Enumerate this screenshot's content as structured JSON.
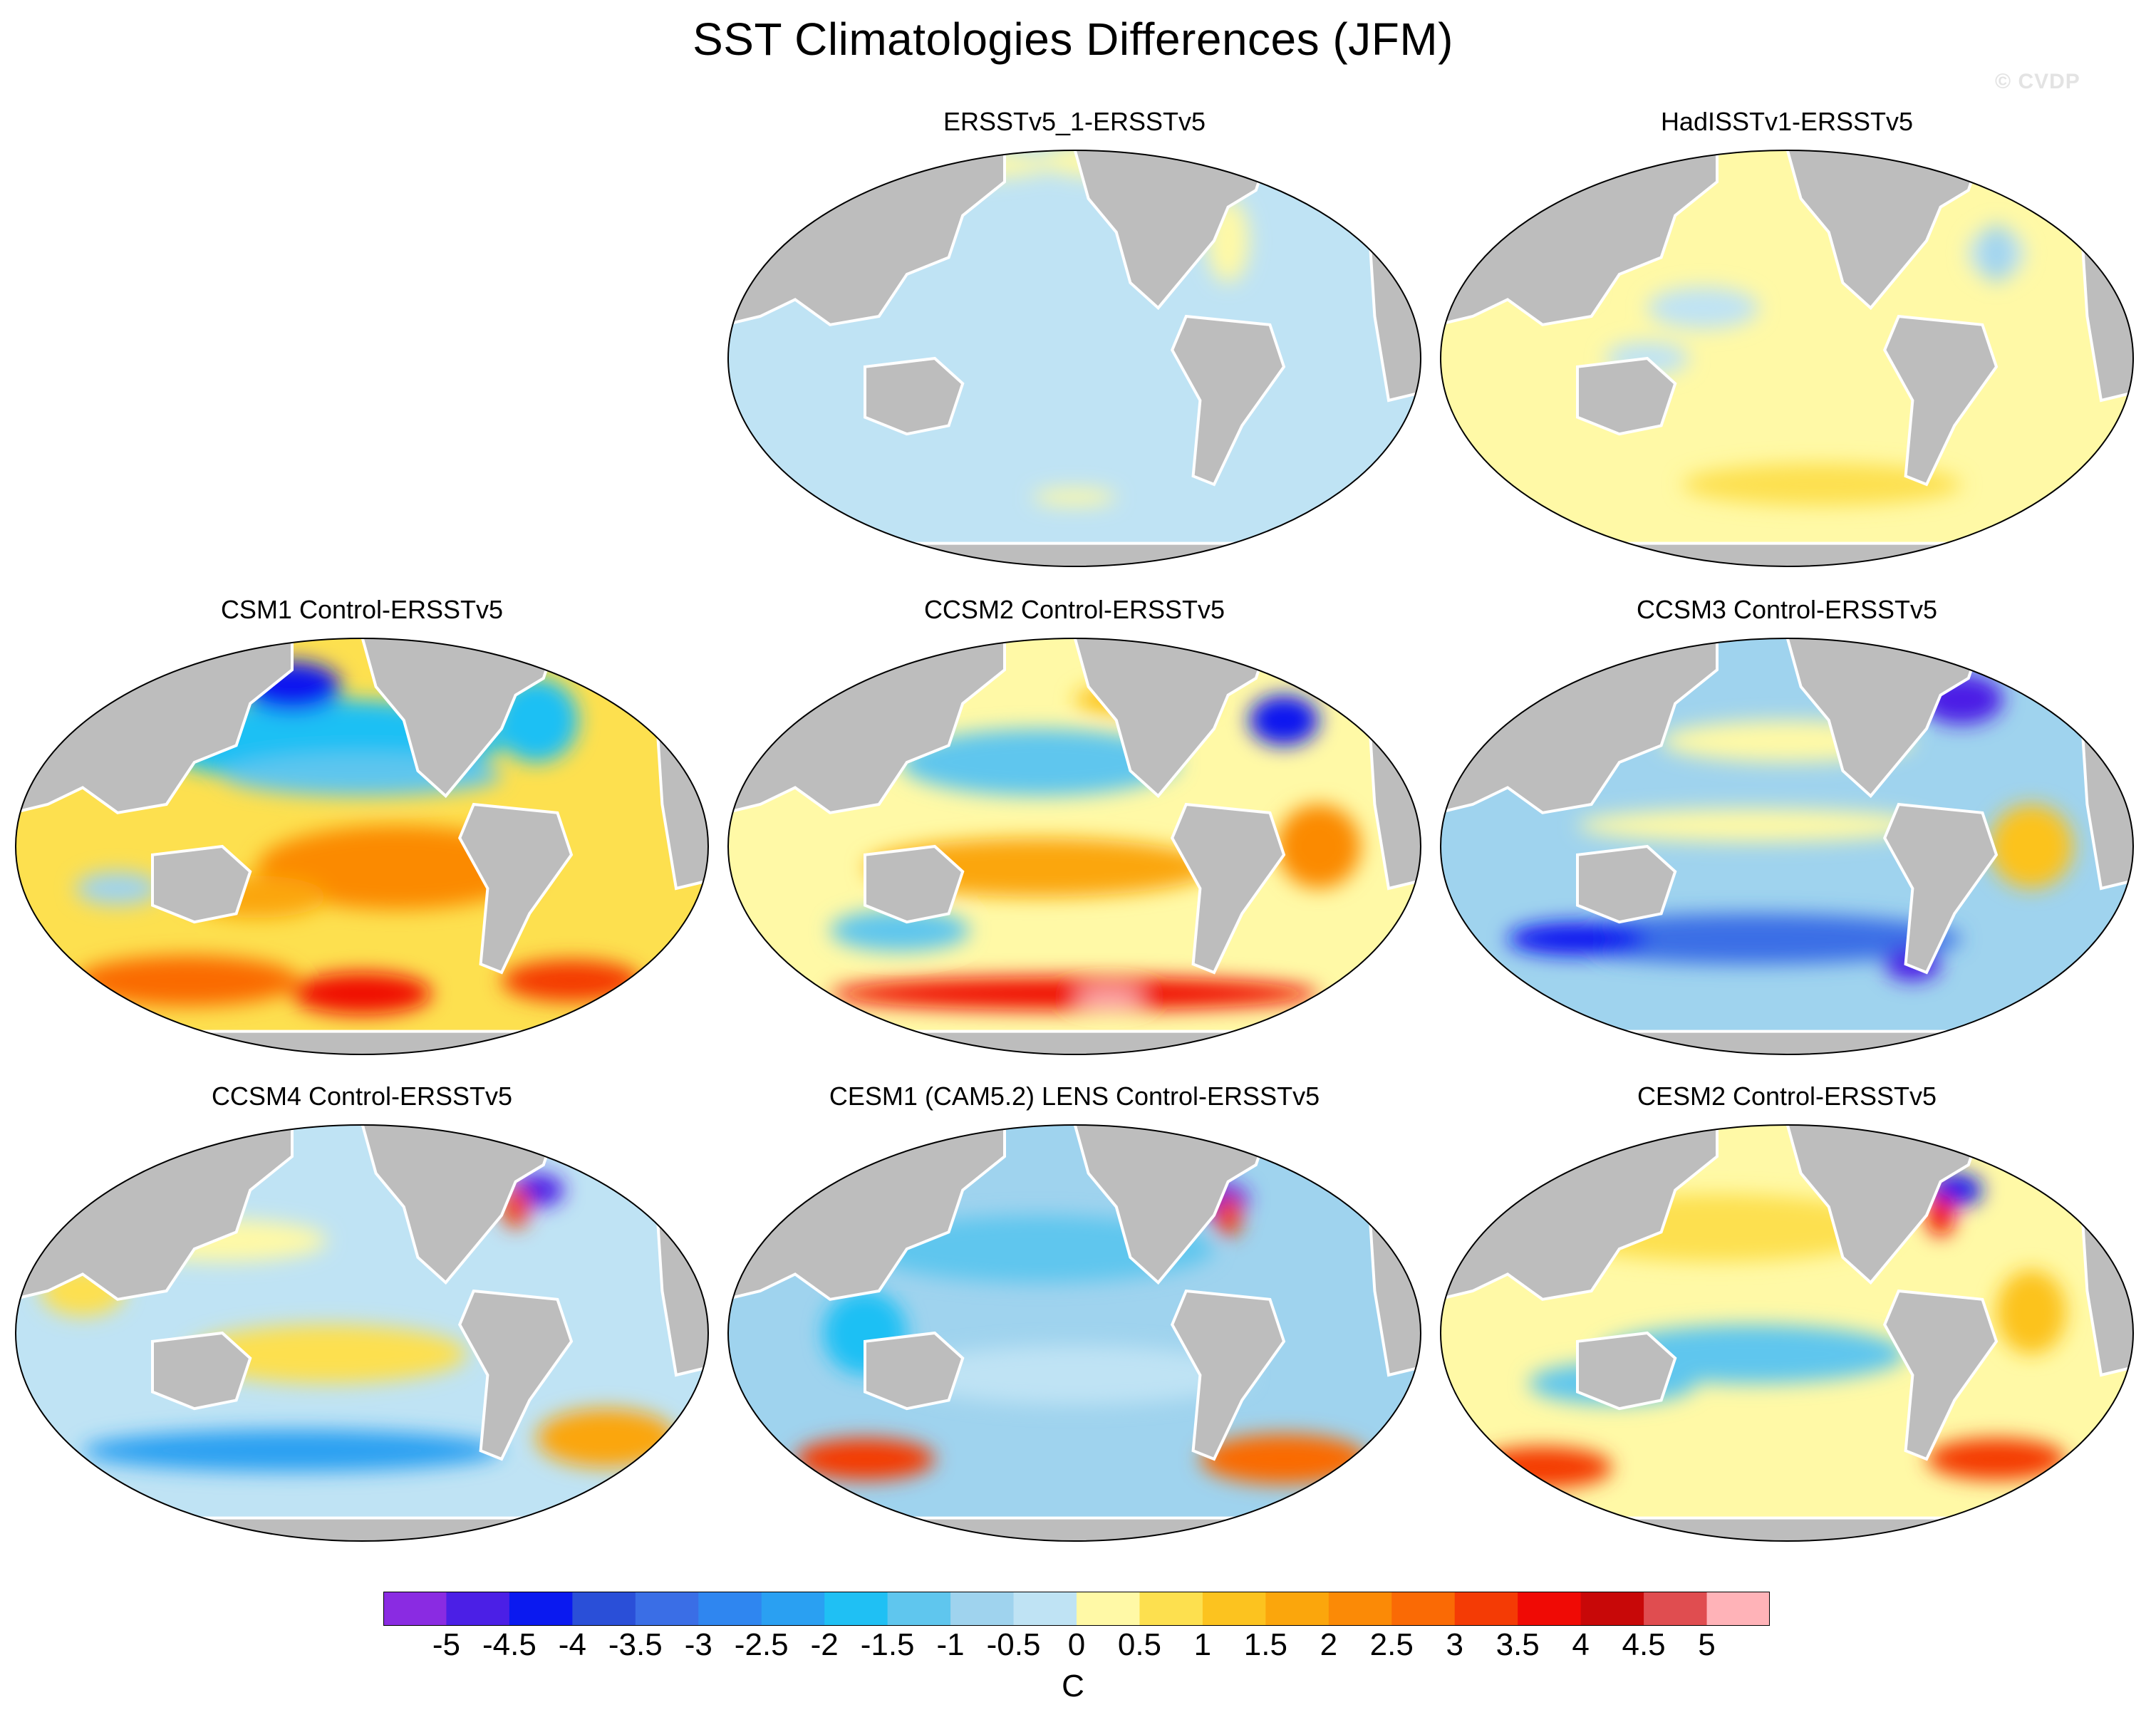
{
  "title": "SST Climatologies Differences (JFM)",
  "watermark": "© CVDP",
  "colors": {
    "land": "#bdbdbd",
    "coast": "#ffffff",
    "zero_band": "#fff9a6",
    "neg_small": "#bfe3f4"
  },
  "panels": [
    {
      "label": "ERSSTv5_1-ERSSTv5",
      "pattern": "flat-cool"
    },
    {
      "label": "HadISSTv1-ERSSTv5",
      "pattern": "flat-warm"
    },
    {
      "label": "CSM1 Control-ERSSTv5",
      "pattern": "warm-south"
    },
    {
      "label": "CCSM2 Control-ERSSTv5",
      "pattern": "warm-south-band"
    },
    {
      "label": "CCSM3 Control-ERSSTv5",
      "pattern": "cool-dominant"
    },
    {
      "label": "CCSM4 Control-ERSSTv5",
      "pattern": "mixed"
    },
    {
      "label": "CESM1 (CAM5.2) LENS Control-ERSSTv5",
      "pattern": "cool-with-warm-south"
    },
    {
      "label": "CESM2 Control-ERSSTv5",
      "pattern": "warm-mixed"
    }
  ],
  "colorbar": {
    "labels": [
      "-5",
      "-4.5",
      "-4",
      "-3.5",
      "-3",
      "-2.5",
      "-2",
      "-1.5",
      "-1",
      "-0.5",
      "0",
      "0.5",
      "1",
      "1.5",
      "2",
      "2.5",
      "3",
      "3.5",
      "4",
      "4.5",
      "5"
    ],
    "units": "C",
    "colors": [
      "#8a2be2",
      "#4b1fe6",
      "#0a19f0",
      "#2a4fd8",
      "#3a6ee6",
      "#2f86f0",
      "#2aa0f2",
      "#1fc0f4",
      "#5fc6ee",
      "#9fd3ee",
      "#bfe3f4",
      "#fff9a6",
      "#fde04f",
      "#fcc31f",
      "#fba60c",
      "#fb8a06",
      "#fa6a05",
      "#f43b05",
      "#f00a05",
      "#c80808",
      "#e04d50",
      "#ffb3b8"
    ]
  }
}
